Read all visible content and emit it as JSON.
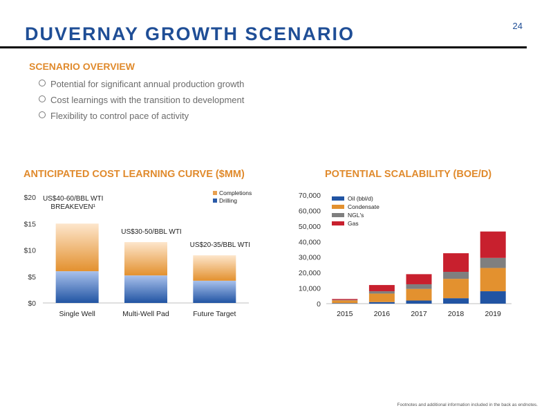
{
  "page_number": "24",
  "title": "DUVERNAY GROWTH SCENARIO",
  "overview": {
    "heading": "SCENARIO OVERVIEW",
    "bullets": [
      "Potential for significant annual production growth",
      "Cost learnings with the transition to development",
      "Flexibility to control pace of activity"
    ]
  },
  "footnote": "Footnotes and additional information included in the back as endnotes.",
  "colors": {
    "brand_blue": "#1f4e96",
    "accent_orange": "#e08a2c",
    "oil": "#2154a3",
    "condensate": "#e3912f",
    "ngl": "#7f7f7f",
    "gas": "#c8202e"
  },
  "chart_data": [
    {
      "type": "bar",
      "stacked": true,
      "title": "ANTICIPATED COST LEARNING CURVE ($MM)",
      "categories": [
        "Single Well",
        "Multi-Well Pad",
        "Future Target"
      ],
      "series": [
        {
          "name": "Drilling",
          "values": [
            6,
            5.2,
            4.2
          ]
        },
        {
          "name": "Completions",
          "values": [
            9,
            6.3,
            4.8
          ]
        }
      ],
      "ylim": [
        0,
        20
      ],
      "yticks": [
        "$0",
        "$5",
        "$10",
        "$15",
        "$20"
      ],
      "legend": "top-right",
      "grid": false,
      "annotations": [
        [
          "US$40-60/BBL WTI",
          "BREAKEVEN¹"
        ],
        [
          "US$30-50/BBL WTI"
        ],
        [
          "US$20-35/BBL WTI"
        ]
      ]
    },
    {
      "type": "bar",
      "stacked": true,
      "title": "POTENTIAL SCALABILITY (BOE/D)",
      "categories": [
        "2015",
        "2016",
        "2017",
        "2018",
        "2019"
      ],
      "series": [
        {
          "name": "Oil (bbl/d)",
          "values": [
            300,
            1000,
            2000,
            3500,
            8000
          ]
        },
        {
          "name": "Condensate",
          "values": [
            1800,
            5500,
            7500,
            12500,
            15000
          ]
        },
        {
          "name": "NGL's",
          "values": [
            300,
            1500,
            3000,
            4500,
            6500
          ]
        },
        {
          "name": "Gas",
          "values": [
            600,
            4000,
            6500,
            12000,
            17000
          ]
        }
      ],
      "ylim": [
        0,
        70000
      ],
      "yticks": [
        "0",
        "10,000",
        "20,000",
        "30,000",
        "40,000",
        "50,000",
        "60,000",
        "70,000"
      ],
      "legend": "top-left",
      "grid": false
    }
  ]
}
